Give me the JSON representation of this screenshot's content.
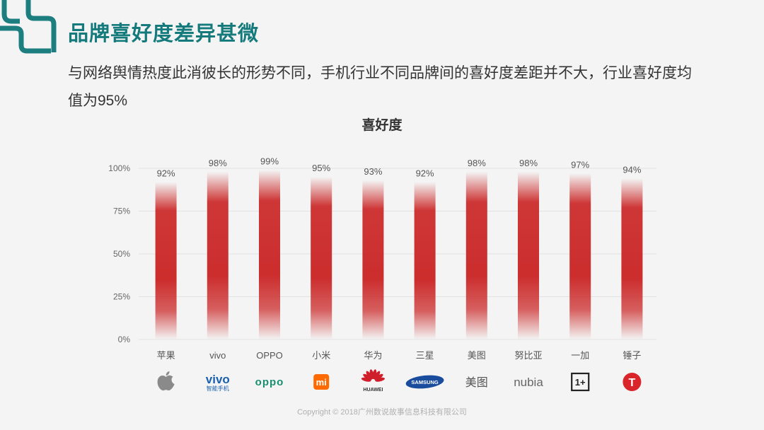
{
  "slide": {
    "title": "品牌喜好度差异甚微",
    "subtitle": "与网络舆情热度此消彼长的形势不同，手机行业不同品牌间的喜好度差距并不大，行业喜好度均值为95%",
    "footer": "Copyright © 2018广州数说故事信息科技有限公司"
  },
  "colors": {
    "accent": "#1d7e7f",
    "bar": "#cc2d2d",
    "grid": "#e2e2e2"
  },
  "chart_data": {
    "type": "bar",
    "title": "喜好度",
    "categories": [
      "苹果",
      "vivo",
      "OPPO",
      "小米",
      "华为",
      "三星",
      "美图",
      "努比亚",
      "一加",
      "锤子"
    ],
    "values": [
      92,
      98,
      99,
      95,
      93,
      92,
      98,
      98,
      97,
      94
    ],
    "data_labels": [
      "92%",
      "98%",
      "99%",
      "95%",
      "93%",
      "92%",
      "98%",
      "98%",
      "97%",
      "94%"
    ],
    "ylim": [
      0,
      100
    ],
    "yticks": [
      0,
      25,
      50,
      75,
      100
    ],
    "ytick_labels": [
      "0%",
      "25%",
      "50%",
      "75%",
      "100%"
    ],
    "grid": true,
    "legend": "none",
    "brand_logos": [
      "apple-icon",
      "vivo-logo",
      "oppo-logo",
      "mi-logo",
      "huawei-logo",
      "samsung-logo",
      "meitu-logo",
      "nubia-logo",
      "oneplus-logo",
      "smartisan-logo"
    ],
    "logo_text": [
      "",
      "vivo",
      "oppo",
      "mi",
      "HUAWEI",
      "SAMSUNG",
      "美图",
      "nubia",
      "1+",
      "T"
    ],
    "logo_subtext": [
      "",
      "智能手机",
      "",
      "",
      "",
      "",
      "",
      "",
      "",
      ""
    ]
  }
}
